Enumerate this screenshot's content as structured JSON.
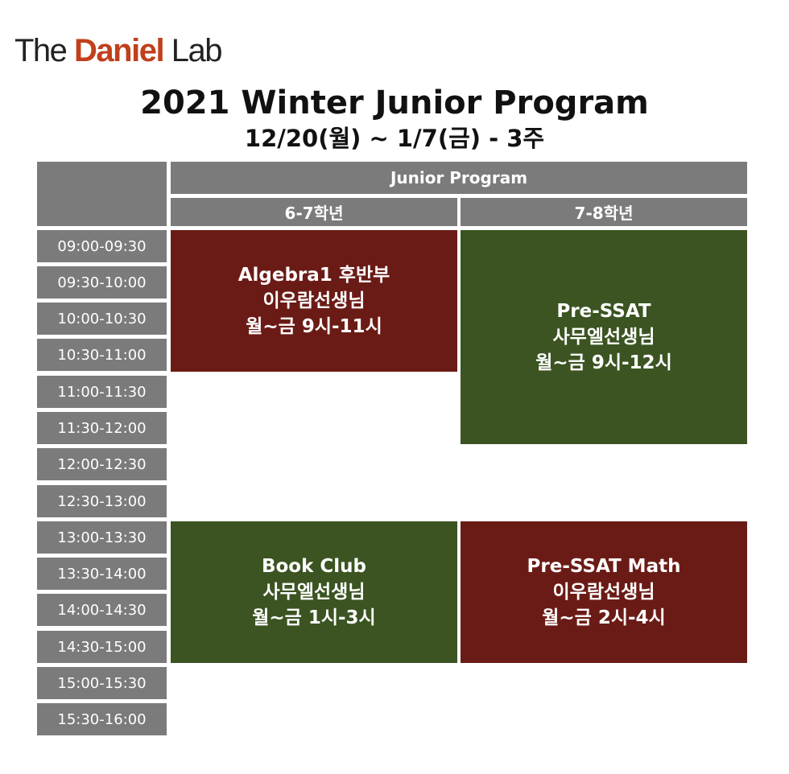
{
  "logo": {
    "prefix": "The ",
    "brand": "Daniel",
    "suffix": " Lab"
  },
  "title": "2021 Winter Junior Program",
  "subtitle": "12/20(월) ~ 1/7(금) - 3주",
  "header": {
    "program": "Junior Program",
    "grades": [
      "6-7학년",
      "7-8학년"
    ]
  },
  "time_slots": [
    "09:00-09:30",
    "09:30-10:00",
    "10:00-10:30",
    "10:30-11:00",
    "11:00-11:30",
    "11:30-12:00",
    "12:00-12:30",
    "12:30-13:00",
    "13:00-13:30",
    "13:30-14:00",
    "14:00-14:30",
    "14:30-15:00",
    "15:00-15:30",
    "15:30-16:00"
  ],
  "classes": [
    {
      "course": "Algebra1 후반부",
      "teacher": "이우람선생님",
      "schedule": "월~금 9시-11시",
      "grade": "6-7학년",
      "color": "#6b1b16"
    },
    {
      "course": "Pre-SSAT",
      "teacher": "사무엘선생님",
      "schedule": "월~금 9시-12시",
      "grade": "7-8학년",
      "color": "#3b5422"
    },
    {
      "course": "Book Club",
      "teacher": "사무엘선생님",
      "schedule": "월~금 1시-3시",
      "grade": "6-7학년",
      "color": "#3b5422"
    },
    {
      "course": "Pre-SSAT Math",
      "teacher": "이우람선생님",
      "schedule": "월~금 2시-4시",
      "grade": "7-8학년",
      "color": "#6b1b16"
    }
  ],
  "colors": {
    "header_gray": "#7b7b7b",
    "red": "#6b1b16",
    "green": "#3b5422",
    "brand": "#c0401c"
  }
}
